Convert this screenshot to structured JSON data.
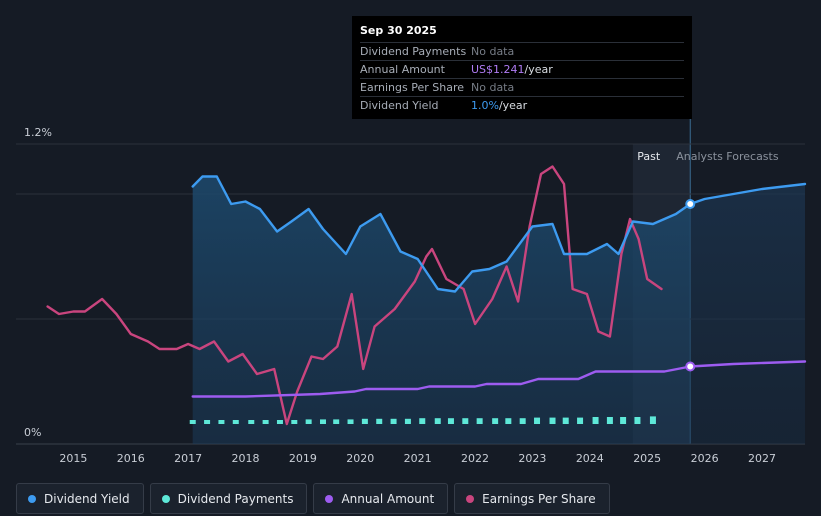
{
  "tooltip": {
    "date": "Sep 30 2025",
    "rows": [
      {
        "label": "Dividend Payments",
        "value": "No data",
        "suffix": ""
      },
      {
        "label": "Annual Amount",
        "value": "US$1.241",
        "suffix": "/year"
      },
      {
        "label": "Earnings Per Share",
        "value": "No data",
        "suffix": ""
      },
      {
        "label": "Dividend Yield",
        "value": "1.0%",
        "suffix": "/year"
      }
    ]
  },
  "regions": {
    "past": "Past",
    "forecast": "Analysts Forecasts"
  },
  "legend": [
    {
      "label": "Dividend Yield",
      "color": "#3d9bf0"
    },
    {
      "label": "Dividend Payments",
      "color": "#5ee8d8"
    },
    {
      "label": "Annual Amount",
      "color": "#9d5cf0"
    },
    {
      "label": "Earnings Per Share",
      "color": "#c9457e"
    }
  ],
  "chart_data": {
    "type": "line",
    "x_ticks": [
      "2015",
      "2016",
      "2017",
      "2018",
      "2019",
      "2020",
      "2021",
      "2022",
      "2023",
      "2024",
      "2025",
      "2026",
      "2027"
    ],
    "y_ticks": [
      "0%",
      "1.2%"
    ],
    "ylim": [
      0,
      1.2
    ],
    "xlim": [
      2014.0,
      2027.75
    ],
    "past_region_start": 2024.75,
    "forecast_start": 2025.75,
    "series": [
      {
        "name": "Dividend Yield",
        "color": "#3d9bf0",
        "points": [
          [
            2017.08,
            1.03
          ],
          [
            2017.25,
            1.07
          ],
          [
            2017.5,
            1.07
          ],
          [
            2017.75,
            0.96
          ],
          [
            2018.0,
            0.97
          ],
          [
            2018.25,
            0.94
          ],
          [
            2018.55,
            0.85
          ],
          [
            2018.8,
            0.89
          ],
          [
            2019.1,
            0.94
          ],
          [
            2019.35,
            0.86
          ],
          [
            2019.75,
            0.76
          ],
          [
            2020.0,
            0.87
          ],
          [
            2020.35,
            0.92
          ],
          [
            2020.7,
            0.77
          ],
          [
            2021.0,
            0.74
          ],
          [
            2021.35,
            0.62
          ],
          [
            2021.65,
            0.61
          ],
          [
            2021.95,
            0.69
          ],
          [
            2022.25,
            0.7
          ],
          [
            2022.55,
            0.73
          ],
          [
            2023.0,
            0.87
          ],
          [
            2023.35,
            0.88
          ],
          [
            2023.55,
            0.76
          ],
          [
            2023.95,
            0.76
          ],
          [
            2024.3,
            0.8
          ],
          [
            2024.5,
            0.76
          ],
          [
            2024.75,
            0.89
          ],
          [
            2025.1,
            0.88
          ],
          [
            2025.5,
            0.92
          ],
          [
            2025.75,
            0.96
          ],
          [
            2026.0,
            0.98
          ],
          [
            2026.5,
            1.0
          ],
          [
            2027.0,
            1.02
          ],
          [
            2027.75,
            1.04
          ]
        ]
      },
      {
        "name": "Annual Amount",
        "color": "#9d5cf0",
        "points": [
          [
            2017.08,
            0.19
          ],
          [
            2018.0,
            0.19
          ],
          [
            2019.3,
            0.2
          ],
          [
            2019.9,
            0.21
          ],
          [
            2020.1,
            0.22
          ],
          [
            2021.0,
            0.22
          ],
          [
            2021.2,
            0.23
          ],
          [
            2022.0,
            0.23
          ],
          [
            2022.2,
            0.24
          ],
          [
            2022.8,
            0.24
          ],
          [
            2023.1,
            0.26
          ],
          [
            2023.8,
            0.26
          ],
          [
            2024.1,
            0.29
          ],
          [
            2025.3,
            0.29
          ],
          [
            2025.75,
            0.31
          ],
          [
            2026.5,
            0.32
          ],
          [
            2027.75,
            0.33
          ]
        ]
      },
      {
        "name": "Earnings Per Share",
        "color": "#c9457e",
        "points": [
          [
            2014.55,
            0.55
          ],
          [
            2014.75,
            0.52
          ],
          [
            2015.0,
            0.53
          ],
          [
            2015.2,
            0.53
          ],
          [
            2015.5,
            0.58
          ],
          [
            2015.75,
            0.52
          ],
          [
            2016.0,
            0.44
          ],
          [
            2016.3,
            0.41
          ],
          [
            2016.5,
            0.38
          ],
          [
            2016.8,
            0.38
          ],
          [
            2017.0,
            0.4
          ],
          [
            2017.2,
            0.38
          ],
          [
            2017.45,
            0.41
          ],
          [
            2017.7,
            0.33
          ],
          [
            2017.95,
            0.36
          ],
          [
            2018.2,
            0.28
          ],
          [
            2018.5,
            0.3
          ],
          [
            2018.72,
            0.08
          ],
          [
            2018.9,
            0.21
          ],
          [
            2019.15,
            0.35
          ],
          [
            2019.35,
            0.34
          ],
          [
            2019.6,
            0.39
          ],
          [
            2019.85,
            0.6
          ],
          [
            2020.05,
            0.3
          ],
          [
            2020.25,
            0.47
          ],
          [
            2020.6,
            0.54
          ],
          [
            2020.95,
            0.65
          ],
          [
            2021.15,
            0.75
          ],
          [
            2021.25,
            0.78
          ],
          [
            2021.5,
            0.66
          ],
          [
            2021.8,
            0.62
          ],
          [
            2022.0,
            0.48
          ],
          [
            2022.3,
            0.58
          ],
          [
            2022.55,
            0.71
          ],
          [
            2022.75,
            0.57
          ],
          [
            2022.95,
            0.87
          ],
          [
            2023.15,
            1.08
          ],
          [
            2023.35,
            1.11
          ],
          [
            2023.55,
            1.04
          ],
          [
            2023.7,
            0.62
          ],
          [
            2023.95,
            0.6
          ],
          [
            2024.15,
            0.45
          ],
          [
            2024.35,
            0.43
          ],
          [
            2024.55,
            0.76
          ],
          [
            2024.7,
            0.9
          ],
          [
            2024.85,
            0.82
          ],
          [
            2025.0,
            0.66
          ],
          [
            2025.25,
            0.62
          ]
        ]
      }
    ],
    "bars": {
      "name": "Dividend Payments",
      "color": "#5ee8d8",
      "x": [
        2017.08,
        2017.33,
        2017.58,
        2017.83,
        2018.1,
        2018.35,
        2018.6,
        2018.85,
        2019.1,
        2019.35,
        2019.58,
        2019.83,
        2020.08,
        2020.33,
        2020.58,
        2020.83,
        2021.08,
        2021.35,
        2021.58,
        2021.83,
        2022.08,
        2022.35,
        2022.58,
        2022.83,
        2023.08,
        2023.35,
        2023.58,
        2023.83,
        2024.1,
        2024.35,
        2024.58,
        2024.83,
        2025.1
      ],
      "values": [
        0.1,
        0.1,
        0.1,
        0.1,
        0.1,
        0.1,
        0.1,
        0.1,
        0.11,
        0.11,
        0.11,
        0.11,
        0.12,
        0.12,
        0.12,
        0.12,
        0.13,
        0.13,
        0.13,
        0.13,
        0.13,
        0.13,
        0.13,
        0.13,
        0.14,
        0.14,
        0.14,
        0.14,
        0.15,
        0.15,
        0.15,
        0.15,
        0.16
      ]
    }
  }
}
